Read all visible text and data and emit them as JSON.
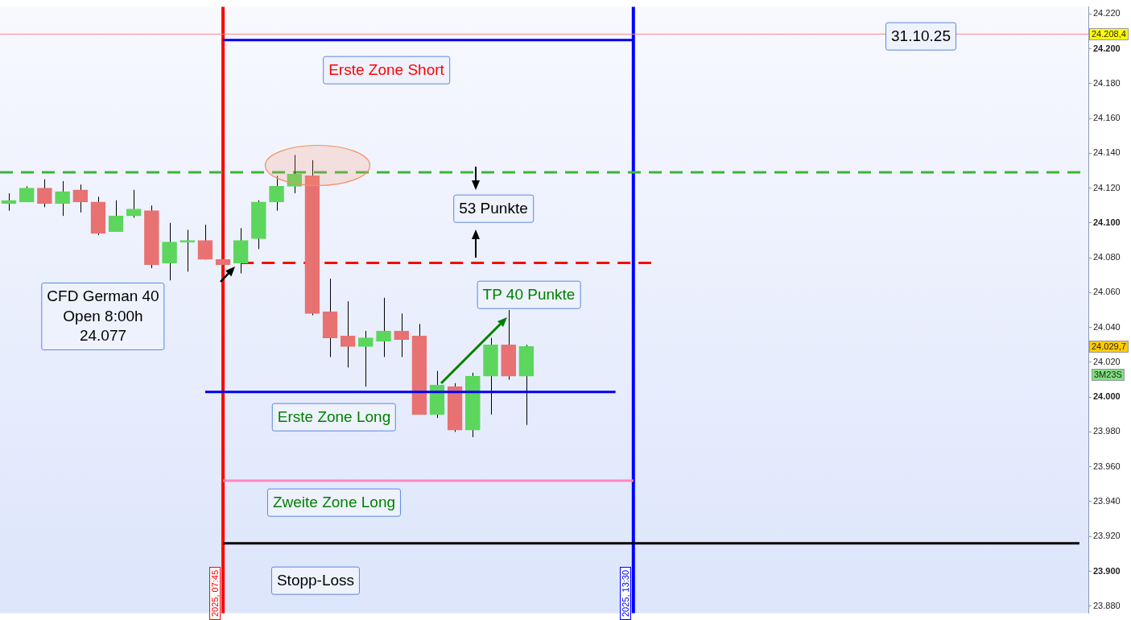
{
  "chart_data": {
    "type": "candlestick",
    "categories": [
      null,
      null,
      null,
      null,
      null,
      null,
      null,
      null,
      null,
      null,
      null,
      null,
      null,
      null,
      null,
      null,
      null,
      null,
      null,
      null,
      null,
      null,
      null,
      null,
      null,
      null,
      null,
      null,
      null,
      null,
      null,
      null,
      null,
      null,
      null,
      null,
      null,
      null,
      null,
      null,
      null,
      null,
      null,
      null,
      null,
      null,
      null,
      null,
      null,
      null,
      null,
      null,
      null,
      null,
      null,
      null,
      null,
      null,
      null,
      null,
      null
    ],
    "ohlc": [
      [
        24111,
        24117,
        24107,
        24113
      ],
      [
        24112,
        24121,
        24112,
        24120
      ],
      [
        24120,
        24125,
        24109,
        24111
      ],
      [
        24111,
        24124,
        24104,
        24118
      ],
      [
        24119,
        24122,
        24106,
        24112
      ],
      [
        24112,
        24115,
        24093,
        24094
      ],
      [
        24095,
        24113,
        24095,
        24104
      ],
      [
        24104,
        24119,
        24103,
        24108
      ],
      [
        24107,
        24110,
        24074,
        24076
      ],
      [
        24077,
        24100,
        24067,
        24089
      ],
      [
        24089,
        24096,
        24072,
        24090
      ],
      [
        24090,
        24099,
        24079,
        24079
      ],
      [
        24079,
        24079,
        24076,
        24076
      ],
      [
        24077,
        24097,
        24071,
        24090
      ],
      [
        24091,
        24113,
        24085,
        24112
      ],
      [
        24112,
        24127,
        24107,
        24121
      ],
      [
        24121,
        24139,
        24117,
        24128
      ],
      [
        24127,
        24136,
        24047,
        24048
      ],
      [
        24049,
        24068,
        24023,
        24034
      ],
      [
        24035,
        24055,
        24017,
        24029
      ],
      [
        24029,
        24038,
        24006,
        24034
      ],
      [
        24032,
        24057,
        24023,
        24038
      ],
      [
        24038,
        24048,
        24023,
        24033
      ],
      [
        24035,
        24042,
        23990,
        23990
      ],
      [
        23990,
        24015,
        23988,
        24007
      ],
      [
        24006,
        24008,
        23980,
        23981
      ],
      [
        23981,
        24014,
        23977,
        24012
      ],
      [
        24012,
        24034,
        23990,
        24030
      ],
      [
        24030,
        24050,
        24010,
        24012
      ],
      [
        24012,
        24030,
        23984,
        24029
      ],
      null,
      null,
      null,
      null,
      null,
      null,
      null,
      null,
      null,
      null,
      null,
      null,
      null,
      null,
      null,
      null,
      null,
      null,
      null,
      null,
      null,
      null,
      null,
      null,
      null,
      null,
      null,
      null,
      null,
      null,
      null
    ],
    "colors": [
      "#5cd65c",
      "#5cd65c",
      "#e87272",
      "#5cd65c",
      "#e87272",
      "#e87272",
      "#5cd65c",
      "#5cd65c",
      "#e87272",
      "#5cd65c",
      "#5cd65c",
      "#e87272",
      "#e87272",
      "#5cd65c",
      "#5cd65c",
      "#5cd65c",
      "#5cd65c",
      "#e87272",
      "#e87272",
      "#e87272",
      "#5cd65c",
      "#5cd65c",
      "#e87272",
      "#e87272",
      "#5cd65c",
      "#e87272",
      "#5cd65c",
      "#5cd65c",
      "#e87272",
      "#5cd65c",
      null,
      null,
      null,
      null,
      null,
      null,
      null,
      null,
      null,
      null,
      null,
      null,
      null,
      null,
      null,
      null,
      null,
      null,
      null,
      null,
      null,
      null,
      null,
      null,
      null,
      null,
      null,
      null,
      null,
      null,
      null
    ],
    "series": [
      {
        "type": "line",
        "color": "#0000ee",
        "line_style": "solid",
        "values": [
          null,
          null,
          null,
          null,
          null,
          null,
          null,
          null,
          null,
          null,
          null,
          null,
          24205,
          24205,
          24205,
          24205,
          24205,
          24205,
          24205,
          24205,
          24205,
          24205,
          24205,
          24205,
          24205,
          24205,
          24205,
          24205,
          24205,
          24205,
          24205,
          24205,
          24205,
          24205,
          24205,
          24205,
          null,
          null,
          null,
          null,
          null,
          null,
          null,
          null,
          null,
          null,
          null,
          null,
          null,
          null,
          null,
          null,
          null,
          null,
          null,
          null,
          null,
          null,
          null,
          null,
          null
        ]
      },
      {
        "type": "line",
        "color": "#ff0000",
        "line_style": "dashed",
        "values": [
          null,
          null,
          null,
          null,
          null,
          null,
          null,
          null,
          null,
          null,
          null,
          null,
          null,
          24077,
          24077,
          24077,
          24077,
          24077,
          24077,
          24077,
          24077,
          24077,
          24077,
          24077,
          24077,
          24077,
          24077,
          24077,
          24077,
          24077,
          24077,
          24077,
          24077,
          24077,
          24077,
          24077,
          24077,
          null,
          null,
          null,
          null,
          null,
          null,
          null,
          null,
          null,
          null,
          null,
          null,
          null,
          null,
          null,
          null,
          null,
          null,
          null,
          null,
          null,
          null,
          null,
          null
        ]
      },
      {
        "type": "line",
        "color": "#0000ee",
        "line_style": "solid",
        "values": [
          null,
          null,
          null,
          null,
          null,
          null,
          null,
          null,
          null,
          null,
          null,
          24003,
          24003,
          24003,
          24003,
          24003,
          24003,
          24003,
          24003,
          24003,
          24003,
          24003,
          24003,
          24003,
          24003,
          24003,
          24003,
          24003,
          24003,
          24003,
          24003,
          24003,
          24003,
          24003,
          24003,
          null,
          null,
          null,
          null,
          null,
          null,
          null,
          null,
          null,
          null,
          null,
          null,
          null,
          null,
          null,
          null,
          null,
          null,
          null,
          null,
          null,
          null,
          null,
          null,
          null,
          null
        ]
      },
      {
        "type": "line",
        "color": "#ff88c0",
        "line_style": "solid",
        "values": [
          null,
          null,
          null,
          null,
          null,
          null,
          null,
          null,
          null,
          null,
          null,
          null,
          23952,
          23952,
          23952,
          23952,
          23952,
          23952,
          23952,
          23952,
          23952,
          23952,
          23952,
          23952,
          23952,
          23952,
          23952,
          23952,
          23952,
          23952,
          23952,
          23952,
          23952,
          23952,
          23952,
          23952,
          null,
          null,
          null,
          null,
          null,
          null,
          null,
          null,
          null,
          null,
          null,
          null,
          null,
          null,
          null,
          null,
          null,
          null,
          null,
          null,
          null,
          null,
          null,
          null,
          null
        ]
      },
      {
        "type": "line",
        "color": "#000000",
        "line_style": "solid",
        "values": [
          null,
          null,
          null,
          null,
          null,
          null,
          null,
          null,
          null,
          null,
          null,
          null,
          23916,
          23916,
          23916,
          23916,
          23916,
          23916,
          23916,
          23916,
          23916,
          23916,
          23916,
          23916,
          23916,
          23916,
          23916,
          23916,
          23916,
          23916,
          23916,
          23916,
          23916,
          23916,
          23916,
          23916,
          23916,
          23916,
          23916,
          23916,
          23916,
          23916,
          23916,
          23916,
          23916,
          23916,
          23916,
          23916,
          23916,
          23916,
          23916,
          23916,
          23916,
          23916,
          23916,
          23916,
          23916,
          23916,
          23916,
          23916,
          23916
        ]
      }
    ],
    "ref_lines": [
      {
        "axis": "y",
        "value": 24208.4,
        "label": "24.208,4",
        "color": "#ff8080",
        "line_style": "solid"
      },
      {
        "axis": "y",
        "value": 24129,
        "color": "#3cb43c",
        "line_style": "dashed"
      }
    ],
    "annotations": [
      "31.10.25",
      "Erste Zone Short",
      "53 Punkte",
      "CFD German 40\nOpen 8:00h\n24.077",
      "TP 40 Punkte",
      "Erste Zone Long",
      "Zweite Zone Long",
      "Stopp-Loss",
      "24.029,7",
      "3M23S",
      "2025, 07:45",
      "2025, 13:30"
    ],
    "ylim": [
      23876,
      24224
    ],
    "yticks": [
      {
        "value": 24220,
        "label": "24.220"
      },
      {
        "value": 24200,
        "label": "24.200"
      },
      {
        "value": 24180,
        "label": "24.180"
      },
      {
        "value": 24160,
        "label": "24.160"
      },
      {
        "value": 24140,
        "label": "24.140"
      },
      {
        "value": 24120,
        "label": "24.120"
      },
      {
        "value": 24100,
        "label": "24.100"
      },
      {
        "value": 24080,
        "label": "24.080"
      },
      {
        "value": 24060,
        "label": "24.060"
      },
      {
        "value": 24040,
        "label": "24.040"
      },
      {
        "value": 24020,
        "label": "24.020"
      },
      {
        "value": 24000,
        "label": "24.000"
      },
      {
        "value": 23980,
        "label": "23.980"
      },
      {
        "value": 23960,
        "label": "23.960"
      },
      {
        "value": 23940,
        "label": "23.940"
      },
      {
        "value": 23920,
        "label": "23.920"
      },
      {
        "value": 23900,
        "label": "23.900"
      },
      {
        "value": 23880,
        "label": "23.880"
      }
    ],
    "tick_labels": "y"
  }
}
